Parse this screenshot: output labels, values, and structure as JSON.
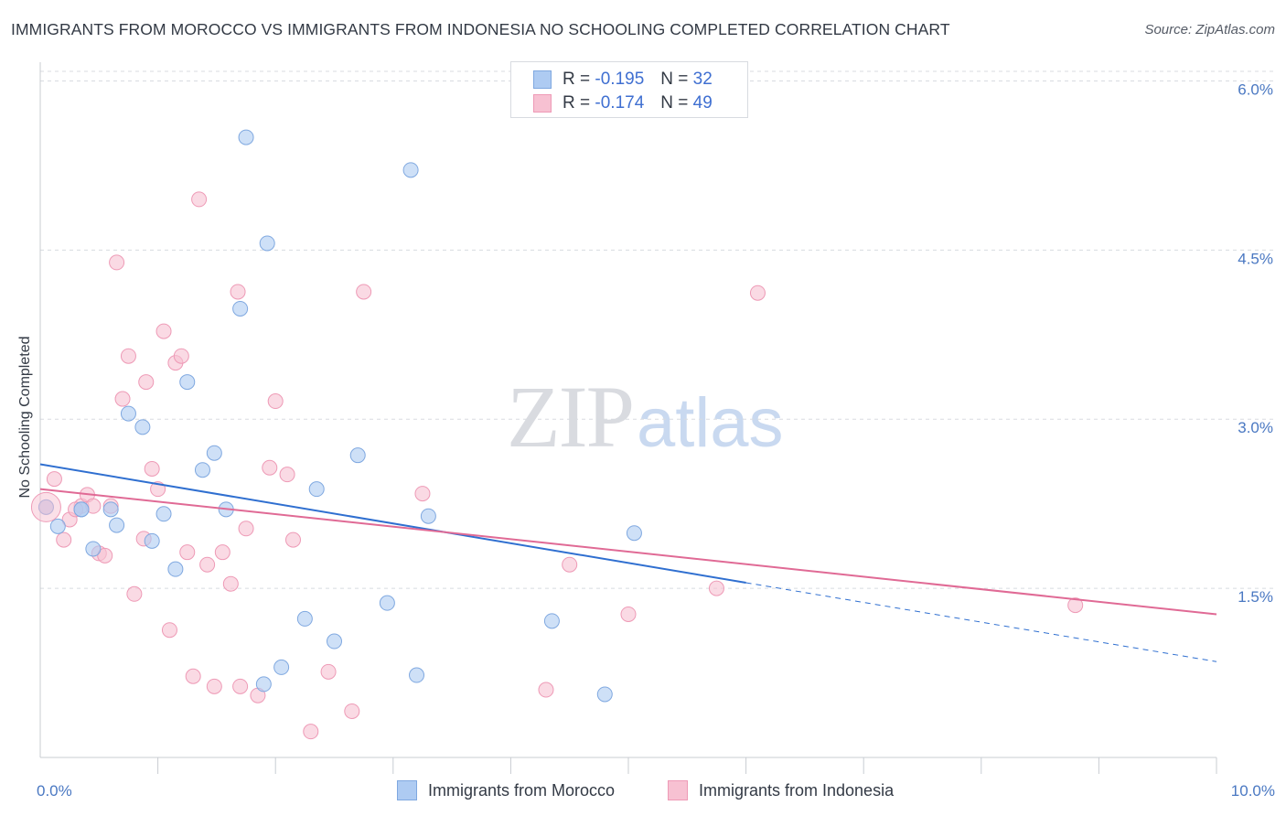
{
  "title": "IMMIGRANTS FROM MOROCCO VS IMMIGRANTS FROM INDONESIA NO SCHOOLING COMPLETED CORRELATION CHART",
  "source": "Source: ZipAtlas.com",
  "watermark": {
    "zip": "ZIP",
    "atlas": "atlas"
  },
  "colors": {
    "morocco_fill": "#aecbf2",
    "morocco_stroke": "#7fa8e0",
    "morocco_line": "#2f6fd0",
    "indonesia_fill": "#f7c1d2",
    "indonesia_stroke": "#ee9ab6",
    "indonesia_line": "#e06a95",
    "tick_label": "#4a78c2",
    "grid": "#d8dbe0"
  },
  "legend_top": {
    "rows": [
      {
        "r_label": "R =",
        "r_value": "-0.195",
        "n_label": "N =",
        "n_value": "32"
      },
      {
        "r_label": "R =",
        "r_value": "-0.174",
        "n_label": "N =",
        "n_value": "49"
      }
    ]
  },
  "chart_data": {
    "type": "scatter",
    "title": "IMMIGRANTS FROM MOROCCO VS IMMIGRANTS FROM INDONESIA NO SCHOOLING COMPLETED CORRELATION CHART",
    "xlabel": "",
    "ylabel": "No Schooling Completed",
    "xlim": [
      0,
      10
    ],
    "ylim": [
      0,
      6.15
    ],
    "x_tick_labels": [
      {
        "value": 0,
        "label": "0.0%"
      },
      {
        "value": 10,
        "label": "10.0%"
      }
    ],
    "x_minor_ticks": [
      1,
      2,
      3,
      4,
      5,
      6,
      7,
      8,
      9,
      10
    ],
    "y_ticks": [
      {
        "value": 1.5,
        "label": "1.5%"
      },
      {
        "value": 3.0,
        "label": "3.0%"
      },
      {
        "value": 4.5,
        "label": "4.5%"
      },
      {
        "value": 6.0,
        "label": "6.0%"
      }
    ],
    "grid": "horizontal dashed",
    "legend_position": "bottom",
    "series": [
      {
        "name": "Immigrants from Morocco",
        "points": [
          [
            0.05,
            2.22
          ],
          [
            0.15,
            2.05
          ],
          [
            0.35,
            2.2
          ],
          [
            0.45,
            1.85
          ],
          [
            0.65,
            2.06
          ],
          [
            0.75,
            3.05
          ],
          [
            0.87,
            2.93
          ],
          [
            0.95,
            1.92
          ],
          [
            1.05,
            2.16
          ],
          [
            1.15,
            1.67
          ],
          [
            1.25,
            3.33
          ],
          [
            1.38,
            2.55
          ],
          [
            1.48,
            2.7
          ],
          [
            1.58,
            2.2
          ],
          [
            1.7,
            3.98
          ],
          [
            1.75,
            5.5
          ],
          [
            1.9,
            0.65
          ],
          [
            1.93,
            4.56
          ],
          [
            2.05,
            0.8
          ],
          [
            2.25,
            1.23
          ],
          [
            2.35,
            2.38
          ],
          [
            2.5,
            1.03
          ],
          [
            2.7,
            2.68
          ],
          [
            2.95,
            1.37
          ],
          [
            3.15,
            5.21
          ],
          [
            3.2,
            0.73
          ],
          [
            3.3,
            2.14
          ],
          [
            4.35,
            1.21
          ],
          [
            4.8,
            0.56
          ],
          [
            5.05,
            1.99
          ],
          [
            0.35,
            2.2
          ],
          [
            0.6,
            2.2
          ]
        ],
        "trend": {
          "x1": 0,
          "y1": 2.6,
          "x2": 6.0,
          "y2": 1.55,
          "dashed_to_x": 10,
          "dashed_to_y": 0.85
        }
      },
      {
        "name": "Immigrants from Indonesia",
        "points": [
          [
            0.05,
            2.22
          ],
          [
            0.12,
            2.47
          ],
          [
            0.2,
            1.93
          ],
          [
            0.25,
            2.11
          ],
          [
            0.35,
            2.23
          ],
          [
            0.4,
            2.33
          ],
          [
            0.45,
            2.23
          ],
          [
            0.5,
            1.81
          ],
          [
            0.55,
            1.79
          ],
          [
            0.6,
            2.23
          ],
          [
            0.65,
            4.39
          ],
          [
            0.7,
            3.18
          ],
          [
            0.75,
            3.56
          ],
          [
            0.8,
            1.45
          ],
          [
            0.88,
            1.94
          ],
          [
            0.9,
            3.33
          ],
          [
            0.95,
            2.56
          ],
          [
            1.0,
            2.38
          ],
          [
            1.05,
            3.78
          ],
          [
            1.1,
            1.13
          ],
          [
            1.15,
            3.5
          ],
          [
            1.2,
            3.56
          ],
          [
            1.25,
            1.82
          ],
          [
            1.3,
            0.72
          ],
          [
            1.35,
            4.95
          ],
          [
            1.42,
            1.71
          ],
          [
            1.48,
            0.63
          ],
          [
            1.55,
            1.82
          ],
          [
            1.62,
            1.54
          ],
          [
            1.68,
            4.13
          ],
          [
            1.7,
            0.63
          ],
          [
            1.75,
            2.03
          ],
          [
            1.85,
            0.55
          ],
          [
            1.95,
            2.57
          ],
          [
            2.0,
            3.16
          ],
          [
            2.1,
            2.51
          ],
          [
            2.15,
            1.93
          ],
          [
            2.3,
            0.23
          ],
          [
            2.45,
            0.76
          ],
          [
            2.65,
            0.41
          ],
          [
            2.75,
            4.13
          ],
          [
            3.25,
            2.34
          ],
          [
            4.3,
            0.6
          ],
          [
            4.5,
            1.71
          ],
          [
            5.0,
            1.27
          ],
          [
            5.75,
            1.5
          ],
          [
            6.1,
            4.12
          ],
          [
            8.8,
            1.35
          ],
          [
            0.3,
            2.2
          ]
        ],
        "trend": {
          "x1": 0,
          "y1": 2.38,
          "x2": 10,
          "y2": 1.27
        }
      }
    ]
  },
  "legend_bottom": {
    "items": [
      {
        "label": "Immigrants from Morocco"
      },
      {
        "label": "Immigrants from Indonesia"
      }
    ]
  }
}
